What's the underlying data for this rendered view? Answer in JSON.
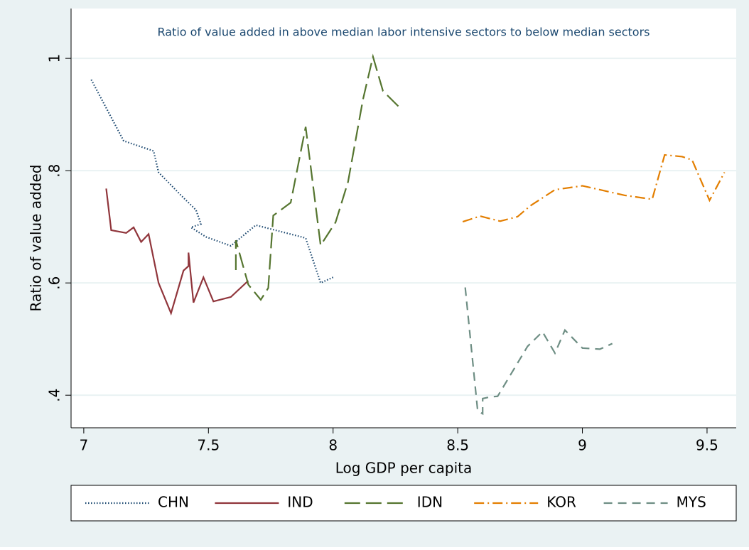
{
  "chart_data": {
    "type": "line",
    "title": "Ratio of value added in above median labor intensive sectors to below median sectors",
    "xlabel": "Log GDP per capita",
    "ylabel": "Ratio of value added",
    "xlim": [
      6.949,
      9.617
    ],
    "ylim": [
      0.342,
      1.047
    ],
    "xticks": [
      7,
      7.5,
      8,
      8.5,
      9,
      9.5
    ],
    "yticks": [
      {
        "value": 0.4,
        "label": ".4"
      },
      {
        "value": 0.6,
        "label": ".6"
      },
      {
        "value": 0.8,
        "label": ".8"
      },
      1
    ],
    "grid": true,
    "legend": "bottom",
    "series": [
      {
        "name": "CHN",
        "color": "#1a476f",
        "dash": "dotted",
        "x": [
          7.03,
          7.16,
          7.28,
          7.3,
          7.39,
          7.45,
          7.47,
          7.43,
          7.49,
          7.59,
          7.69,
          7.89,
          7.95,
          8.0
        ],
        "values": [
          0.962,
          0.853,
          0.835,
          0.797,
          0.756,
          0.73,
          0.705,
          0.699,
          0.682,
          0.666,
          0.703,
          0.68,
          0.6,
          0.61
        ]
      },
      {
        "name": "IND",
        "color": "#90353b",
        "dash": "solid",
        "x": [
          7.09,
          7.11,
          7.17,
          7.2,
          7.23,
          7.26,
          7.3,
          7.35,
          7.4,
          7.42,
          7.42,
          7.44,
          7.48,
          7.52,
          7.59,
          7.66
        ],
        "values": [
          0.768,
          0.694,
          0.689,
          0.699,
          0.673,
          0.687,
          0.6,
          0.546,
          0.622,
          0.63,
          0.654,
          0.565,
          0.61,
          0.567,
          0.575,
          0.604
        ]
      },
      {
        "name": "IDN",
        "color": "#55752f",
        "dash": "longdash",
        "x": [
          7.61,
          7.61,
          7.66,
          7.71,
          7.74,
          7.76,
          7.83,
          7.89,
          7.95,
          8.01,
          8.06,
          8.12,
          8.16,
          8.2,
          8.27
        ],
        "values": [
          0.623,
          0.676,
          0.597,
          0.57,
          0.591,
          0.72,
          0.743,
          0.878,
          0.667,
          0.708,
          0.78,
          0.927,
          1.003,
          0.942,
          0.911
        ]
      },
      {
        "name": "KOR",
        "color": "#e37e00",
        "dash": "dashdot",
        "x": [
          8.52,
          8.59,
          8.67,
          8.74,
          8.79,
          8.89,
          9.0,
          9.17,
          9.28,
          9.33,
          9.4,
          9.44,
          9.51,
          9.57
        ],
        "values": [
          0.709,
          0.719,
          0.71,
          0.718,
          0.737,
          0.766,
          0.773,
          0.756,
          0.749,
          0.828,
          0.825,
          0.819,
          0.747,
          0.797
        ]
      },
      {
        "name": "MYS",
        "color": "#6e8e84",
        "dash": "dash",
        "x": [
          8.53,
          8.58,
          8.6,
          8.6,
          8.63,
          8.66,
          8.78,
          8.84,
          8.89,
          8.93,
          9.0,
          9.07,
          9.12
        ],
        "values": [
          0.592,
          0.372,
          0.367,
          0.394,
          0.397,
          0.398,
          0.487,
          0.513,
          0.475,
          0.516,
          0.484,
          0.482,
          0.492
        ]
      }
    ]
  }
}
